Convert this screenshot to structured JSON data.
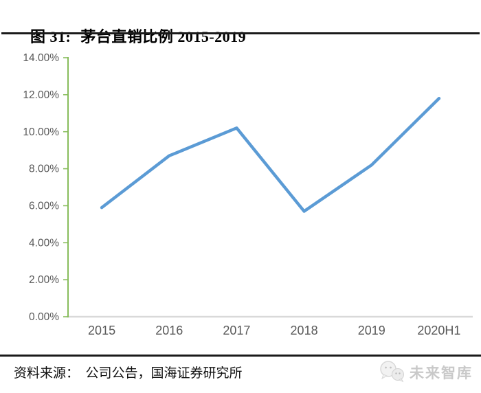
{
  "header": {
    "title_prefix": "图 31:",
    "title_main": "茅台直销比例 2015-2019"
  },
  "chart_data": {
    "type": "line",
    "title": "茅台直销比例 2015-2019",
    "categories": [
      "2015",
      "2016",
      "2017",
      "2018",
      "2019",
      "2020H1"
    ],
    "values": [
      5.9,
      8.7,
      10.2,
      5.7,
      8.2,
      11.8
    ],
    "unit": "%",
    "xlabel": "",
    "ylabel": "",
    "ylim": [
      0,
      14
    ],
    "yticks": [
      0,
      2,
      4,
      6,
      8,
      10,
      12,
      14
    ],
    "ytick_labels": [
      "0.00%",
      "2.00%",
      "4.00%",
      "6.00%",
      "8.00%",
      "10.00%",
      "12.00%",
      "14.00%"
    ],
    "grid": false,
    "legend_position": "none",
    "colors": {
      "line": "#5B9BD5",
      "y_axis": "#87BC5B",
      "x_axis": "#D9D9D9",
      "tick_label": "#595959"
    }
  },
  "footer": {
    "text": "资料来源：  公司公告，国海证券研究所"
  },
  "logo": {
    "icon": "chat-bubbles-icon",
    "text": "未来智库",
    "color": "#c9c9c9"
  }
}
